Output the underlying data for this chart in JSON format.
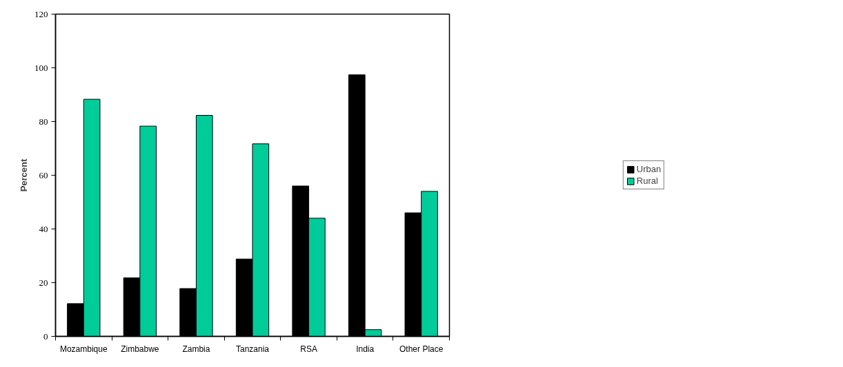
{
  "chart_data": {
    "type": "bar",
    "ylabel": "Percent",
    "categories": [
      "Mozambique",
      "Zimbabwe",
      "Zambia",
      "Tanzania",
      "RSA",
      "India",
      "Other Place"
    ],
    "series": [
      {
        "name": "Urban",
        "color": "#000000",
        "values": [
          12.2,
          21.8,
          17.8,
          28.8,
          56,
          97.4,
          46
        ]
      },
      {
        "name": "Rural",
        "color": "#00cc99",
        "values": [
          88.3,
          78.3,
          82.3,
          71.7,
          44,
          2.5,
          54
        ]
      }
    ],
    "ylim": [
      0,
      120
    ],
    "yticks": [
      0,
      20,
      40,
      60,
      80,
      100,
      120
    ],
    "grid": false,
    "legend": "right"
  }
}
